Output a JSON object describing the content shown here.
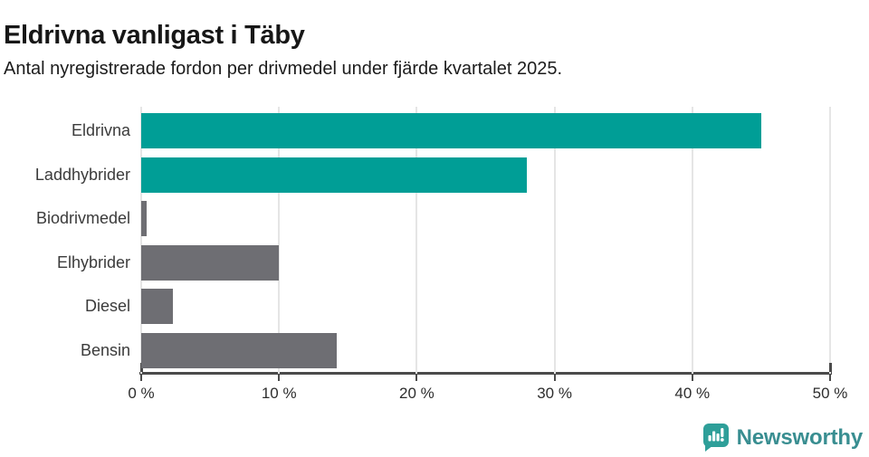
{
  "chart_data": {
    "type": "bar",
    "orientation": "horizontal",
    "title": "Eldrivna vanligast i Täby",
    "subtitle": "Antal nyregistrerade fordon per drivmedel under fjärde kvartalet 2025.",
    "categories": [
      "Eldrivna",
      "Laddhybrider",
      "Biodrivmedel",
      "Elhybrider",
      "Diesel",
      "Bensin"
    ],
    "values": [
      45,
      28,
      0.4,
      10,
      2.3,
      14.2
    ],
    "unit": "%",
    "bar_colors": [
      "#009E96",
      "#009E96",
      "#6E6E73",
      "#6E6E73",
      "#6E6E73",
      "#6E6E73"
    ],
    "accent_color": "#009E96",
    "neutral_color": "#6E6E73",
    "xlim": [
      0,
      50
    ],
    "x_ticks": [
      "0 %",
      "10 %",
      "20 %",
      "30 %",
      "40 %",
      "50 %"
    ],
    "x_tick_values": [
      0,
      10,
      20,
      30,
      40,
      50
    ],
    "grid": true,
    "legend": "none"
  },
  "footer": {
    "brand": "Newsworthy",
    "brand_text_color": "#398e91",
    "logo_color": "#2e9f99"
  }
}
